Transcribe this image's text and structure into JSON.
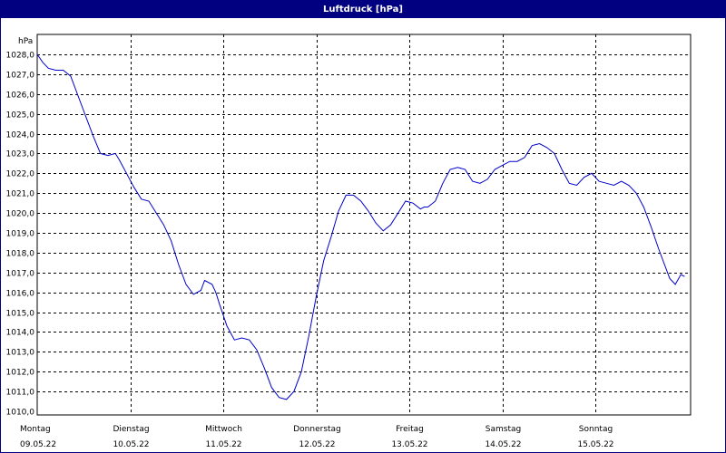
{
  "window": {
    "title": "Luftdruck [hPa]"
  },
  "chart_data": {
    "type": "line",
    "title": "Luftdruck [hPa]",
    "ylabel": "hPa",
    "xlabel": "",
    "ylim": [
      1010.0,
      1028.0
    ],
    "y_ticks": [
      "1028,0",
      "1027,0",
      "1026,0",
      "1025,0",
      "1024,0",
      "1023,0",
      "1022,0",
      "1021,0",
      "1020,0",
      "1019,0",
      "1018,0",
      "1017,0",
      "1016,0",
      "1015,0",
      "1014,0",
      "1013,0",
      "1012,0",
      "1011,0",
      "1010,0"
    ],
    "x_range": [
      0,
      7
    ],
    "x_ticks": [
      {
        "day": "Montag",
        "date": "09.05.22"
      },
      {
        "day": "Dienstag",
        "date": "10.05.22"
      },
      {
        "day": "Mittwoch",
        "date": "11.05.22"
      },
      {
        "day": "Donnerstag",
        "date": "12.05.22"
      },
      {
        "day": "Freitag",
        "date": "13.05.22"
      },
      {
        "day": "Samstag",
        "date": "14.05.22"
      },
      {
        "day": "Sonntag",
        "date": "15.05.22"
      }
    ],
    "grid": true,
    "legend": "none",
    "line_color": "#0000cc",
    "series": [
      {
        "x": [
          0.0,
          0.06,
          0.12,
          0.2,
          0.28,
          0.36,
          0.44,
          0.52,
          0.6,
          0.68,
          0.76,
          0.84,
          0.88,
          0.96,
          1.04,
          1.12,
          1.2,
          1.28,
          1.36,
          1.44,
          1.52,
          1.6,
          1.68,
          1.76,
          1.8,
          1.88,
          1.92,
          1.96,
          2.04,
          2.12,
          2.2,
          2.28,
          2.36,
          2.44,
          2.52,
          2.6,
          2.68,
          2.76,
          2.84,
          2.92,
          3.0,
          3.08,
          3.16,
          3.24,
          3.32,
          3.4,
          3.48,
          3.56,
          3.64,
          3.72,
          3.8,
          3.88,
          3.96,
          4.04,
          4.12,
          4.16,
          4.2,
          4.28,
          4.36,
          4.44,
          4.52,
          4.6,
          4.68,
          4.76,
          4.84,
          4.92,
          5.0,
          5.08,
          5.16,
          5.24,
          5.32,
          5.4,
          5.48,
          5.56,
          5.64,
          5.72,
          5.8,
          5.88,
          5.96,
          6.04,
          6.12,
          6.2,
          6.28,
          6.36,
          6.44,
          6.52,
          6.6,
          6.68,
          6.72,
          6.8,
          6.86,
          6.92,
          6.96
        ],
        "y": [
          1028.0,
          1027.6,
          1027.3,
          1027.2,
          1027.2,
          1026.9,
          1025.9,
          1024.9,
          1023.9,
          1023.0,
          1022.9,
          1023.0,
          1022.7,
          1022.0,
          1021.3,
          1020.7,
          1020.6,
          1020.0,
          1019.4,
          1018.6,
          1017.4,
          1016.4,
          1015.9,
          1016.1,
          1016.6,
          1016.4,
          1016.0,
          1015.4,
          1014.3,
          1013.6,
          1013.7,
          1013.6,
          1013.1,
          1012.2,
          1011.2,
          1010.7,
          1010.6,
          1011.0,
          1012.0,
          1013.8,
          1015.8,
          1017.6,
          1018.8,
          1020.1,
          1020.9,
          1020.9,
          1020.6,
          1020.1,
          1019.5,
          1019.1,
          1019.4,
          1020.0,
          1020.6,
          1020.5,
          1020.2,
          1020.3,
          1020.3,
          1020.6,
          1021.5,
          1022.2,
          1022.3,
          1022.2,
          1021.6,
          1021.5,
          1021.7,
          1022.2,
          1022.4,
          1022.6,
          1022.6,
          1022.8,
          1023.4,
          1023.5,
          1023.3,
          1023.0,
          1022.2,
          1021.5,
          1021.4,
          1021.8,
          1022.0,
          1021.6,
          1021.5,
          1021.4,
          1021.6,
          1021.4,
          1021.0,
          1020.3,
          1019.3,
          1018.2,
          1017.7,
          1016.7,
          1016.4,
          1016.9,
          1016.8
        ]
      }
    ]
  }
}
